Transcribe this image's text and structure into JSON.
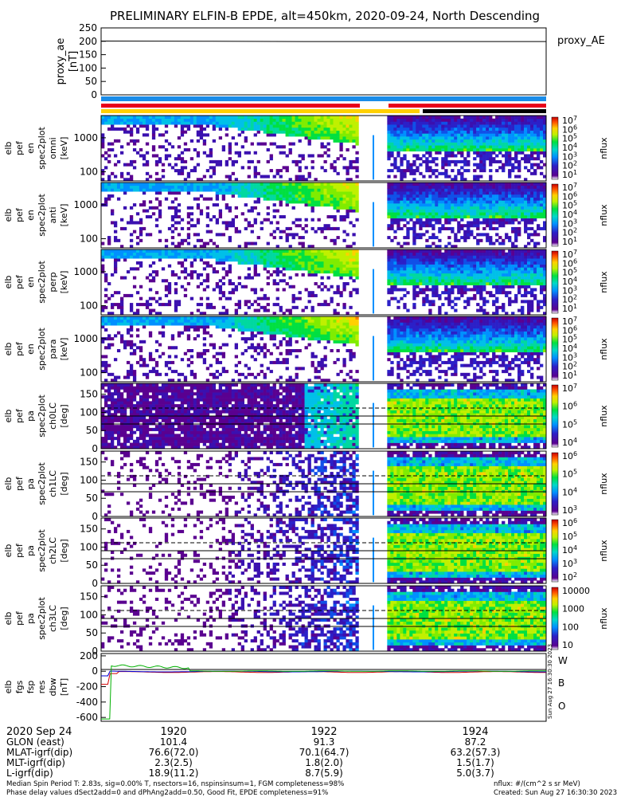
{
  "chart_data": {
    "type": "heatmap",
    "title": "PRELIMINARY ELFIN-B EPDE, alt=450km, 2020-09-24, North Descending",
    "date_label": "2020 Sep 24",
    "time_ticks": [
      "1920",
      "1922",
      "1924"
    ],
    "orbit_table": [
      {
        "label": "GLON (east)",
        "values": [
          "101.4",
          "91.3",
          "87.2"
        ]
      },
      {
        "label": "MLAT-igrf(dip)",
        "values": [
          "76.6(72.0)",
          "70.1(64.7)",
          "63.2(57.3)"
        ]
      },
      {
        "label": "MLT-igrf(dip)",
        "values": [
          "2.3(2.5)",
          "1.8(2.0)",
          "1.5(1.7)"
        ]
      },
      {
        "label": "L-igrf(dip)",
        "values": [
          "18.9(11.2)",
          "8.7(5.9)",
          "5.0(3.7)"
        ]
      }
    ],
    "footer_left": [
      "Median Spin Period T: 2.83s, sig=0.00% T, nsectors=16, nspinsinsum=1, FGM completeness=98%",
      "Phase delay values dSect2add=0 and dPhAng2add=0.50, Good Fit, EPDE completeness=91%"
    ],
    "footer_right": [
      "nflux: #/(cm^2 s sr MeV)",
      "Created: Sun Aug 27 16:30:30 2023"
    ],
    "side_stamp": "Sun Aug 27 16:30:30 2023",
    "proxy_ae": {
      "ylabel": [
        "proxy_ae",
        "[nT]"
      ],
      "yticks": [
        "250",
        "200",
        "150",
        "100",
        "50",
        "0"
      ],
      "ylim": [
        0,
        250
      ],
      "legend": "proxy_AE",
      "value": 199
    },
    "energy_panels": [
      {
        "ylabel": [
          "elb",
          "pef",
          "en",
          "spec2plot",
          "omni",
          "[keV]"
        ],
        "yticks": [
          "1000",
          "100"
        ],
        "cbar": [
          "10^7",
          "10^6",
          "10^5",
          "10^4",
          "10^3",
          "10^2",
          "10^1"
        ],
        "cbar_label": "nflux"
      },
      {
        "ylabel": [
          "elb",
          "pef",
          "en",
          "spec2plot",
          "anti",
          "[keV]"
        ],
        "yticks": [
          "1000",
          "100"
        ],
        "cbar": [
          "10^7",
          "10^6",
          "10^5",
          "10^4",
          "10^3",
          "10^2",
          "10^1"
        ],
        "cbar_label": "nflux"
      },
      {
        "ylabel": [
          "elb",
          "pef",
          "en",
          "spec2plot",
          "perp",
          "[keV]"
        ],
        "yticks": [
          "1000",
          "100"
        ],
        "cbar": [
          "10^7",
          "10^6",
          "10^5",
          "10^4",
          "10^3",
          "10^2",
          "10^1"
        ],
        "cbar_label": "nflux"
      },
      {
        "ylabel": [
          "elb",
          "pef",
          "en",
          "spec2plot",
          "para",
          "[keV]"
        ],
        "yticks": [
          "1000",
          "100"
        ],
        "cbar": [
          "10^7",
          "10^6",
          "10^5",
          "10^4",
          "10^3",
          "10^2",
          "10^1"
        ],
        "cbar_label": "nflux"
      }
    ],
    "pa_panels": [
      {
        "ylabel": [
          "elb",
          "pef",
          "pa",
          "spec2plot",
          "ch0LC",
          "[deg]"
        ],
        "yticks": [
          "150",
          "100",
          "50",
          "0"
        ],
        "cbar": [
          "10^7",
          "10^6",
          "10^5",
          "10^4"
        ],
        "cbar_label": "nflux"
      },
      {
        "ylabel": [
          "elb",
          "pef",
          "pa",
          "spec2plot",
          "ch1LC",
          "[deg]"
        ],
        "yticks": [
          "150",
          "100",
          "50",
          "0"
        ],
        "cbar": [
          "10^6",
          "10^5",
          "10^4",
          "10^3"
        ],
        "cbar_label": "nflux"
      },
      {
        "ylabel": [
          "elb",
          "pef",
          "pa",
          "spec2plot",
          "ch2LC",
          "[deg]"
        ],
        "yticks": [
          "150",
          "100",
          "50",
          "0"
        ],
        "cbar": [
          "10^6",
          "10^5",
          "10^4",
          "10^3",
          "10^2"
        ],
        "cbar_label": "nflux"
      },
      {
        "ylabel": [
          "elb",
          "pef",
          "pa",
          "spec2plot",
          "ch3LC",
          "[deg]"
        ],
        "yticks": [
          "150",
          "100",
          "50",
          "0"
        ],
        "cbar": [
          "10000",
          "1000",
          "100",
          "10"
        ],
        "cbar_label": "nflux"
      }
    ],
    "dbw_panel": {
      "ylabel": [
        "elb",
        "fgs",
        "fsp",
        "res",
        "dbw",
        "[nT]"
      ],
      "yticks": [
        "200",
        "0",
        "-200",
        "-400",
        "-600"
      ],
      "ylim": [
        -650,
        230
      ],
      "legend": [
        {
          "name": "W",
          "color": "#d00000"
        },
        {
          "name": "B",
          "color": "#00b000"
        },
        {
          "name": "O",
          "color": "#0000d0"
        }
      ]
    },
    "colors": {
      "red": "#e8001a",
      "yellow": "#ffd000",
      "blue": "#1a8ce8",
      "black": "#000000"
    }
  }
}
